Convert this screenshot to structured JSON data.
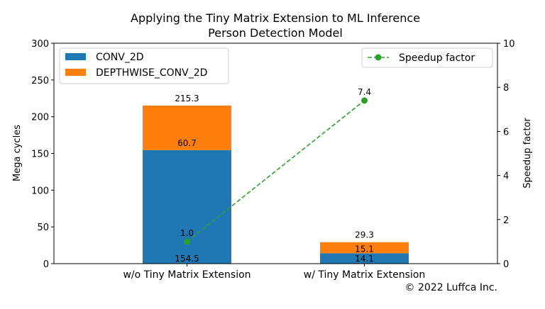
{
  "chart_data": {
    "type": "bar",
    "stacked": true,
    "title": "Applying the Tiny Matrix Extension to ML Inference",
    "subtitle": "Person Detection Model",
    "categories": [
      "w/o Tiny Matrix Extension",
      "w/ Tiny Matrix Extension"
    ],
    "series": [
      {
        "name": "CONV_2D",
        "values": [
          154.5,
          14.1
        ],
        "color": "#1f77b4"
      },
      {
        "name": "DEPTHWISE_CONV_2D",
        "values": [
          60.7,
          15.1
        ],
        "color": "#ff7f0e"
      }
    ],
    "totals": [
      215.3,
      29.3
    ],
    "total_labels": [
      "215.3",
      "29.3"
    ],
    "value_labels": [
      [
        "154.5",
        "14.1"
      ],
      [
        "60.7",
        "15.1"
      ]
    ],
    "ylabel": "Mega cycles",
    "ylim": [
      0,
      300
    ],
    "yticks": [
      0,
      50,
      100,
      150,
      200,
      250,
      300
    ],
    "secondary": {
      "type": "line",
      "name": "Speedup factor",
      "values": [
        1.0,
        7.4
      ],
      "labels": [
        "1.0",
        "7.4"
      ],
      "color": "#2ca02c",
      "linestyle": "dashed",
      "marker": "circle",
      "ylabel": "Speedup factor",
      "ylim": [
        0,
        10
      ],
      "yticks": [
        0,
        2,
        4,
        6,
        8,
        10
      ]
    },
    "legend_left": "top-left",
    "legend_right": "top-right",
    "grid": false,
    "footer": "© 2022 Luffca Inc."
  }
}
